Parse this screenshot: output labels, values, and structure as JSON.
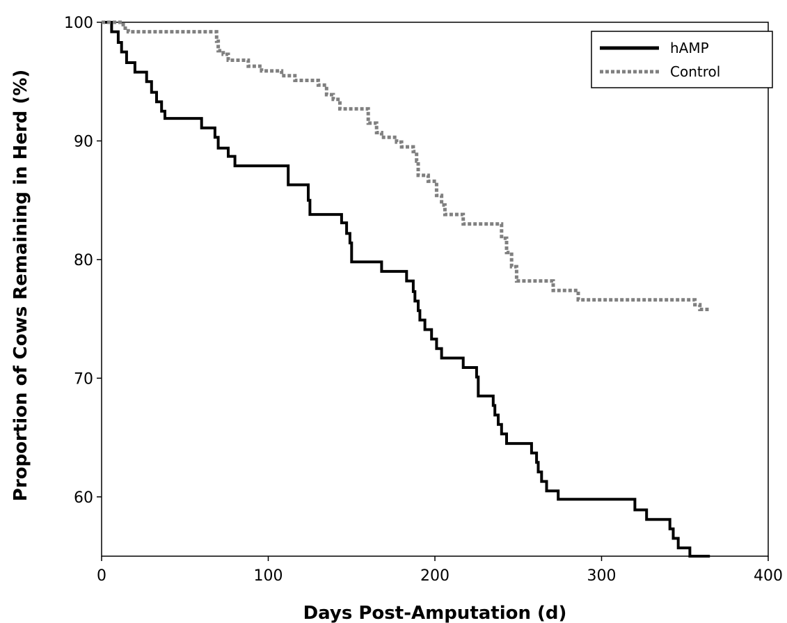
{
  "chart_data": {
    "type": "line",
    "title": "",
    "xlabel": "Days Post-Amputation (d)",
    "ylabel": "Proportion of Cows Remaining in Herd (%)",
    "xlim": [
      0,
      400
    ],
    "ylim": [
      55,
      100
    ],
    "x_ticks": [
      "0",
      "100",
      "200",
      "300",
      "400"
    ],
    "y_ticks": [
      "60",
      "70",
      "80",
      "90",
      "100"
    ],
    "grid": false,
    "legend_position": "top-right",
    "series": [
      {
        "name": "hAMP",
        "color": "#000000",
        "line_style": "solid",
        "points": [
          [
            0,
            100
          ],
          [
            6,
            100
          ],
          [
            6,
            99.2
          ],
          [
            10,
            99.2
          ],
          [
            10,
            98.3
          ],
          [
            12,
            98.3
          ],
          [
            12,
            97.5
          ],
          [
            15,
            97.5
          ],
          [
            15,
            96.6
          ],
          [
            20,
            96.6
          ],
          [
            20,
            95.8
          ],
          [
            27,
            95.8
          ],
          [
            27,
            95
          ],
          [
            30,
            95
          ],
          [
            30,
            94.1
          ],
          [
            33,
            94.1
          ],
          [
            33,
            93.3
          ],
          [
            36,
            93.3
          ],
          [
            36,
            92.5
          ],
          [
            38,
            92.5
          ],
          [
            38,
            91.9
          ],
          [
            60,
            91.9
          ],
          [
            60,
            91.1
          ],
          [
            68,
            91.1
          ],
          [
            68,
            90.3
          ],
          [
            70,
            90.3
          ],
          [
            70,
            89.4
          ],
          [
            76,
            89.4
          ],
          [
            76,
            88.7
          ],
          [
            80,
            88.7
          ],
          [
            80,
            87.9
          ],
          [
            112,
            87.9
          ],
          [
            112,
            86.3
          ],
          [
            124,
            86.3
          ],
          [
            124,
            85
          ],
          [
            125,
            85
          ],
          [
            125,
            83.8
          ],
          [
            144,
            83.8
          ],
          [
            144,
            83.1
          ],
          [
            147,
            83.1
          ],
          [
            147,
            82.2
          ],
          [
            149,
            82.2
          ],
          [
            149,
            81.4
          ],
          [
            150,
            81.4
          ],
          [
            150,
            79.8
          ],
          [
            168,
            79.8
          ],
          [
            168,
            79
          ],
          [
            183,
            79
          ],
          [
            183,
            78.2
          ],
          [
            187,
            78.2
          ],
          [
            187,
            77.3
          ],
          [
            188,
            77.3
          ],
          [
            188,
            76.5
          ],
          [
            190,
            76.5
          ],
          [
            190,
            75.7
          ],
          [
            191,
            75.7
          ],
          [
            191,
            74.9
          ],
          [
            194,
            74.9
          ],
          [
            194,
            74.1
          ],
          [
            198,
            74.1
          ],
          [
            198,
            73.3
          ],
          [
            201,
            73.3
          ],
          [
            201,
            72.5
          ],
          [
            204,
            72.5
          ],
          [
            204,
            71.7
          ],
          [
            217,
            71.7
          ],
          [
            217,
            70.9
          ],
          [
            225,
            70.9
          ],
          [
            225,
            70.1
          ],
          [
            226,
            70.1
          ],
          [
            226,
            68.5
          ],
          [
            235,
            68.5
          ],
          [
            235,
            67.7
          ],
          [
            236,
            67.7
          ],
          [
            236,
            66.9
          ],
          [
            238,
            66.9
          ],
          [
            238,
            66.1
          ],
          [
            240,
            66.1
          ],
          [
            240,
            65.3
          ],
          [
            243,
            65.3
          ],
          [
            243,
            64.5
          ],
          [
            258,
            64.5
          ],
          [
            258,
            63.7
          ],
          [
            261,
            63.7
          ],
          [
            261,
            62.9
          ],
          [
            262,
            62.9
          ],
          [
            262,
            62.1
          ],
          [
            264,
            62.1
          ],
          [
            264,
            61.3
          ],
          [
            267,
            61.3
          ],
          [
            267,
            60.5
          ],
          [
            274,
            60.5
          ],
          [
            274,
            59.8
          ],
          [
            320,
            59.8
          ],
          [
            320,
            58.9
          ],
          [
            327,
            58.9
          ],
          [
            327,
            58.1
          ],
          [
            341,
            58.1
          ],
          [
            341,
            57.3
          ],
          [
            343,
            57.3
          ],
          [
            343,
            56.5
          ],
          [
            346,
            56.5
          ],
          [
            346,
            55.7
          ],
          [
            353,
            55.7
          ],
          [
            353,
            55
          ],
          [
            365,
            55
          ]
        ]
      },
      {
        "name": "Control",
        "color": "#808080",
        "line_style": "dashed",
        "points": [
          [
            0,
            100
          ],
          [
            13,
            100
          ],
          [
            13,
            99.5
          ],
          [
            16,
            99.5
          ],
          [
            16,
            99.2
          ],
          [
            69,
            99.2
          ],
          [
            69,
            98.4
          ],
          [
            70,
            98.4
          ],
          [
            70,
            97.6
          ],
          [
            73,
            97.6
          ],
          [
            73,
            97.3
          ],
          [
            76,
            97.3
          ],
          [
            76,
            96.8
          ],
          [
            88,
            96.8
          ],
          [
            88,
            96.3
          ],
          [
            96,
            96.3
          ],
          [
            96,
            95.9
          ],
          [
            108,
            95.9
          ],
          [
            108,
            95.5
          ],
          [
            116,
            95.5
          ],
          [
            116,
            95.1
          ],
          [
            130,
            95.1
          ],
          [
            130,
            94.7
          ],
          [
            135,
            94.7
          ],
          [
            135,
            93.9
          ],
          [
            139,
            93.9
          ],
          [
            139,
            93.5
          ],
          [
            143,
            93.5
          ],
          [
            143,
            92.7
          ],
          [
            160,
            92.7
          ],
          [
            160,
            91.5
          ],
          [
            165,
            91.5
          ],
          [
            165,
            90.7
          ],
          [
            168,
            90.7
          ],
          [
            168,
            90.3
          ],
          [
            177,
            90.3
          ],
          [
            177,
            89.9
          ],
          [
            180,
            89.9
          ],
          [
            180,
            89.5
          ],
          [
            187,
            89.5
          ],
          [
            187,
            89.1
          ],
          [
            189,
            89.1
          ],
          [
            189,
            88.3
          ],
          [
            190,
            88.3
          ],
          [
            190,
            87.1
          ],
          [
            196,
            87.1
          ],
          [
            196,
            86.6
          ],
          [
            201,
            86.6
          ],
          [
            201,
            85.4
          ],
          [
            204,
            85.4
          ],
          [
            204,
            84.6
          ],
          [
            206,
            84.6
          ],
          [
            206,
            83.8
          ],
          [
            217,
            83.8
          ],
          [
            217,
            83
          ],
          [
            240,
            83
          ],
          [
            240,
            81.8
          ],
          [
            243,
            81.8
          ],
          [
            243,
            80.6
          ],
          [
            246,
            80.6
          ],
          [
            246,
            79.4
          ],
          [
            249,
            79.4
          ],
          [
            249,
            78.2
          ],
          [
            271,
            78.2
          ],
          [
            271,
            77.4
          ],
          [
            286,
            77.4
          ],
          [
            286,
            76.6
          ],
          [
            356,
            76.6
          ],
          [
            356,
            76.2
          ],
          [
            359,
            76.2
          ],
          [
            359,
            75.8
          ],
          [
            365,
            75.8
          ]
        ]
      }
    ]
  }
}
